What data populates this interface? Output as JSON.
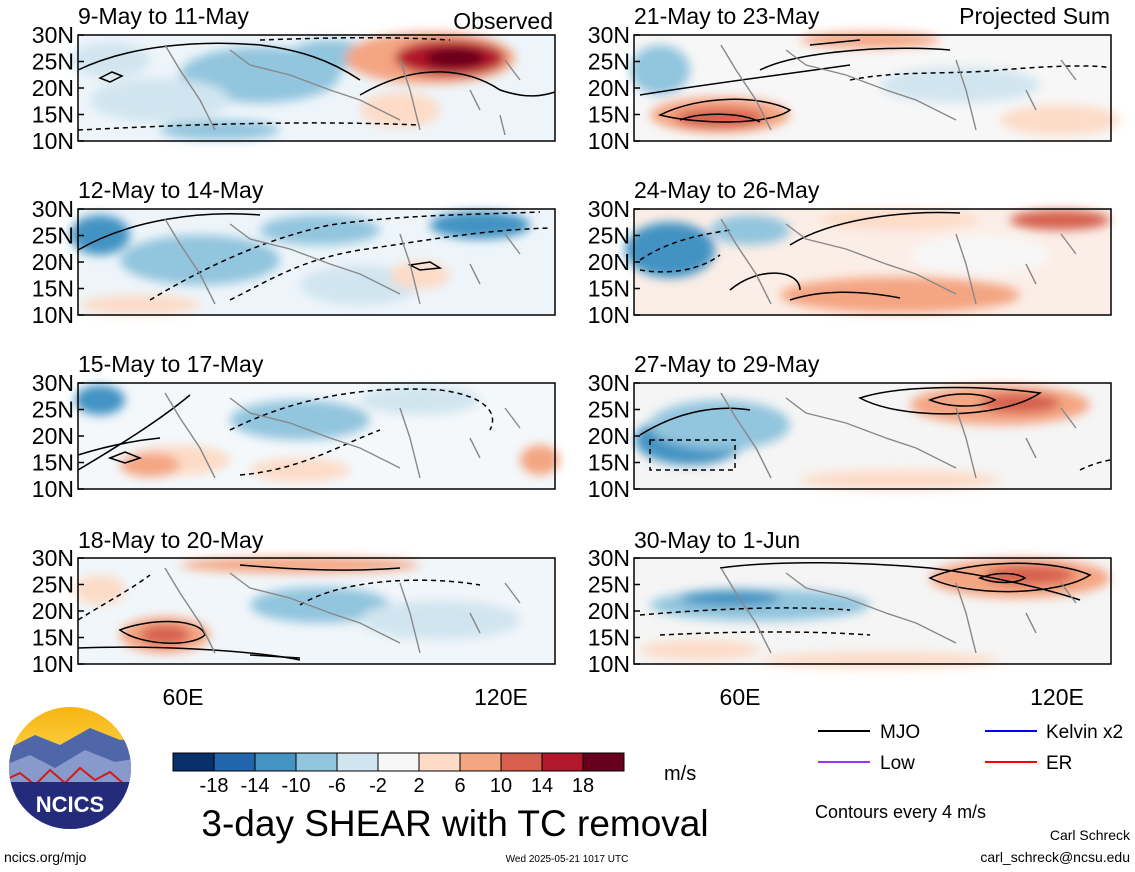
{
  "header": {
    "left_tag": "Observed",
    "right_tag": "Projected Sum"
  },
  "panels": [
    {
      "title": "9-May to 11-May"
    },
    {
      "title": "12-May to 14-May"
    },
    {
      "title": "15-May to 17-May"
    },
    {
      "title": "18-May to 20-May"
    },
    {
      "title": "21-May to 23-May"
    },
    {
      "title": "24-May to 26-May"
    },
    {
      "title": "27-May to 29-May"
    },
    {
      "title": "30-May to 1-Jun"
    }
  ],
  "lat_ticks": [
    "30N",
    "25N",
    "20N",
    "15N",
    "10N"
  ],
  "lon_ticks": [
    "60E",
    "120E"
  ],
  "colorbar": {
    "colors": [
      "#08306b",
      "#2166ac",
      "#4393c3",
      "#92c5de",
      "#d1e5f0",
      "#f7f7f7",
      "#fddbc7",
      "#f4a582",
      "#d6604d",
      "#b2182b",
      "#67001f"
    ],
    "labels": [
      "-18",
      "-14",
      "-10",
      "-6",
      "-2",
      "2",
      "6",
      "10",
      "14",
      "18"
    ],
    "unit": "m/s"
  },
  "title": "3-day SHEAR with TC removal",
  "legend": [
    {
      "label": "MJO",
      "color": "#000000"
    },
    {
      "label": "Kelvin x2",
      "color": "#0000ff"
    },
    {
      "label": "Low",
      "color": "#9933ff"
    },
    {
      "label": "ER",
      "color": "#ff0000"
    }
  ],
  "contour_note": "Contours every 4 m/s",
  "footer": {
    "logo_text": "NCICS",
    "url": "ncics.org/mjo",
    "timestamp": "Wed 2025-05-21 1017 UTC",
    "author": "Carl Schreck",
    "email": "carl_schreck@ncsu.edu"
  }
}
